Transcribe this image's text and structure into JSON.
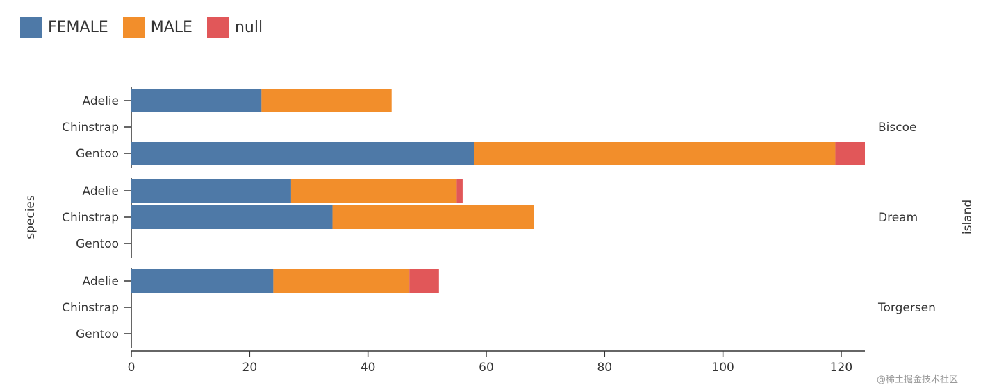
{
  "chart_data": {
    "type": "bar",
    "orientation": "horizontal",
    "stacked": true,
    "ylabel": "species",
    "facet_label": "island",
    "xlim": [
      0,
      124
    ],
    "x_ticks": [
      0,
      20,
      40,
      60,
      80,
      100,
      120
    ],
    "legend_position": "top-left",
    "series": [
      {
        "name": "FEMALE",
        "color": "#4e79a7"
      },
      {
        "name": "MALE",
        "color": "#f28e2b"
      },
      {
        "name": "null",
        "color": "#e15759"
      }
    ],
    "facets": [
      {
        "name": "Biscoe",
        "categories": [
          "Adelie",
          "Chinstrap",
          "Gentoo"
        ],
        "values": {
          "FEMALE": [
            22,
            0,
            58
          ],
          "MALE": [
            22,
            0,
            61
          ],
          "null": [
            0,
            0,
            5
          ]
        }
      },
      {
        "name": "Dream",
        "categories": [
          "Adelie",
          "Chinstrap",
          "Gentoo"
        ],
        "values": {
          "FEMALE": [
            27,
            34,
            0
          ],
          "MALE": [
            28,
            34,
            0
          ],
          "null": [
            1,
            0,
            0
          ]
        }
      },
      {
        "name": "Torgersen",
        "categories": [
          "Adelie",
          "Chinstrap",
          "Gentoo"
        ],
        "values": {
          "FEMALE": [
            24,
            0,
            0
          ],
          "MALE": [
            23,
            0,
            0
          ],
          "null": [
            5,
            0,
            0
          ]
        }
      }
    ]
  },
  "watermark": "@稀土掘金技术社区"
}
